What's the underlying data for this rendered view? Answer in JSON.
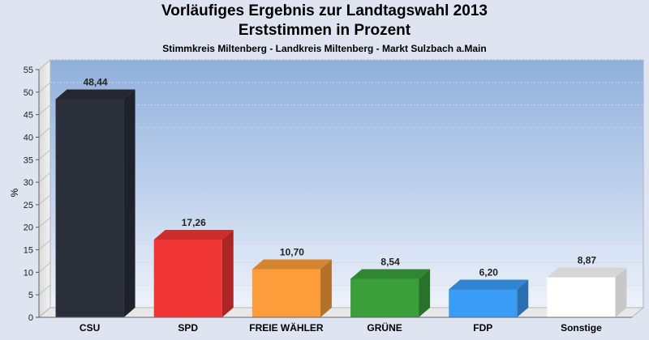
{
  "chart_data": {
    "type": "bar",
    "title": "Vorläufiges Ergebnis zur Landtagswahl 2013",
    "subtitle": "Erststimmen in Prozent",
    "subsubtitle": "Stimmkreis Miltenberg - Landkreis Miltenberg - Markt Sulzbach a.Main",
    "ylabel": "%",
    "ylim": [
      0,
      55
    ],
    "yticks": [
      0,
      5,
      10,
      15,
      20,
      25,
      30,
      35,
      40,
      45,
      50,
      55
    ],
    "grid": true,
    "categories": [
      "CSU",
      "SPD",
      "FREIE WÄHLER",
      "GRÜNE",
      "FDP",
      "Sonstige"
    ],
    "values": [
      48.44,
      17.26,
      10.7,
      8.54,
      6.2,
      8.87
    ],
    "value_labels": [
      "48,44",
      "17,26",
      "10,70",
      "8,54",
      "6,20",
      "8,87"
    ],
    "colors": [
      "#2b2f3a",
      "#f03535",
      "#fb9d3a",
      "#3a9e3a",
      "#3a9cf5",
      "#ffffff"
    ]
  }
}
